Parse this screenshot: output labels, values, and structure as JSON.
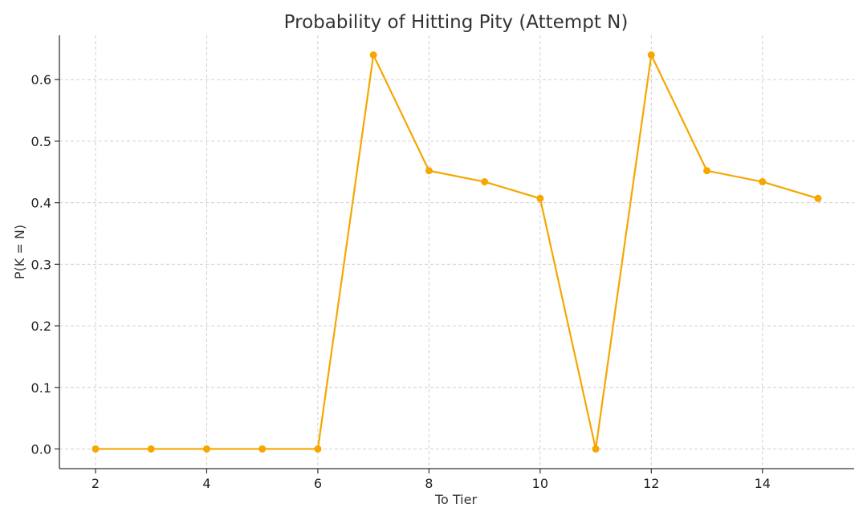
{
  "chart_data": {
    "type": "line",
    "title": "Probability of Hitting Pity (Attempt N)",
    "xlabel": "To Tier",
    "ylabel": "P(K = N)",
    "x": [
      2,
      3,
      4,
      5,
      6,
      7,
      8,
      9,
      10,
      11,
      12,
      13,
      14,
      15
    ],
    "series": [
      {
        "values": [
          0.0,
          0.0,
          0.0,
          0.0,
          0.0,
          0.64,
          0.452,
          0.434,
          0.407,
          0.0,
          0.64,
          0.452,
          0.434,
          0.407
        ],
        "color": "#f5a700",
        "marker": "circle"
      }
    ],
    "xlim": [
      1.35,
      15.65
    ],
    "ylim": [
      -0.032,
      0.672
    ],
    "x_ticks": [
      2,
      4,
      6,
      8,
      10,
      12,
      14
    ],
    "x_tick_labels": [
      "2",
      "4",
      "6",
      "8",
      "10",
      "12",
      "14"
    ],
    "y_ticks": [
      0.0,
      0.1,
      0.2,
      0.3,
      0.4,
      0.5,
      0.6
    ],
    "y_tick_labels": [
      "0.0",
      "0.1",
      "0.2",
      "0.3",
      "0.4",
      "0.5",
      "0.6"
    ],
    "grid": true,
    "legend": "none"
  }
}
